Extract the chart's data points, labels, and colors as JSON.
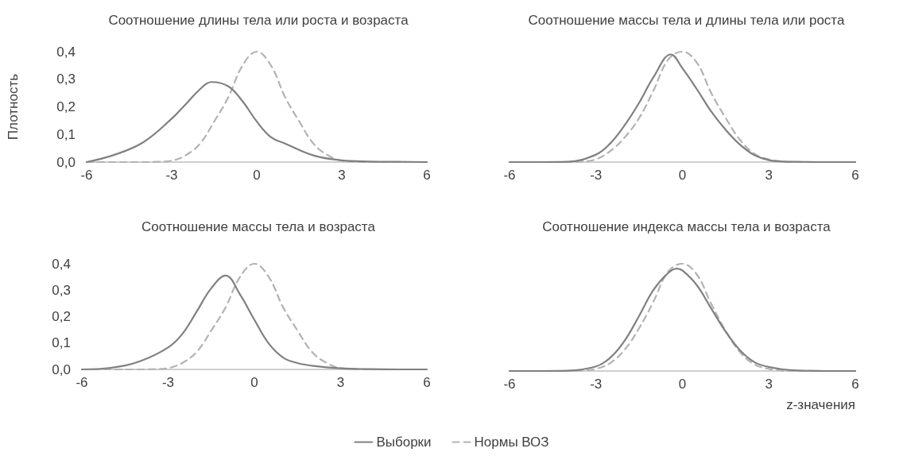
{
  "chart_data": [
    {
      "type": "line",
      "title": "Соотношение длины тела или роста и возраста",
      "ylabel": "Плотность",
      "xlim": [
        -6,
        6
      ],
      "xticks": [
        -6,
        -3,
        0,
        3,
        6
      ],
      "ylim": [
        0,
        0.4
      ],
      "yticks": [
        {
          "value": 0,
          "label": "0,0"
        },
        {
          "value": 0.1,
          "label": "0,1"
        },
        {
          "value": 0.2,
          "label": "0,2"
        },
        {
          "value": 0.3,
          "label": "0,3"
        },
        {
          "value": 0.4,
          "label": "0,4"
        }
      ],
      "grid": false,
      "marker": "none",
      "series": [
        {
          "color": "#808080",
          "line_style": "solid",
          "x": [
            -6,
            -5,
            -4,
            -3,
            -2.5,
            -2,
            -1.6,
            -1,
            -0.5,
            0,
            0.5,
            1,
            2,
            3,
            4,
            5,
            6
          ],
          "values": [
            0,
            0.027,
            0.072,
            0.157,
            0.21,
            0.264,
            0.29,
            0.274,
            0.22,
            0.147,
            0.09,
            0.067,
            0.024,
            0.006,
            0.002,
            0.001,
            0
          ]
        },
        {
          "color": "#b3b3b3",
          "line_style": "dashed",
          "x": [
            -6,
            -5,
            -4,
            -3.5,
            -3,
            -2.5,
            -2,
            -1.5,
            -1,
            -0.5,
            0,
            0.5,
            1,
            1.5,
            2,
            2.5,
            3,
            3.5,
            4,
            5,
            6
          ],
          "values": [
            0,
            0,
            0,
            0.001,
            0.005,
            0.025,
            0.067,
            0.147,
            0.235,
            0.35,
            0.4,
            0.35,
            0.235,
            0.147,
            0.067,
            0.025,
            0.005,
            0.001,
            0,
            0,
            0
          ]
        }
      ]
    },
    {
      "type": "line",
      "title": "Соотношение массы тела и длины тела или роста",
      "xlim": [
        -6,
        6
      ],
      "xticks": [
        -6,
        -3,
        0,
        3,
        6
      ],
      "ylim": [
        0,
        0.4
      ],
      "tick_labels": "x",
      "grid": false,
      "marker": "none",
      "series": [
        {
          "color": "#808080",
          "line_style": "solid",
          "x": [
            -6,
            -5,
            -4,
            -3,
            -2.5,
            -2,
            -1.5,
            -1,
            -0.4,
            0,
            0.5,
            1,
            1.5,
            2,
            2.5,
            3,
            3.5,
            4,
            5,
            6
          ],
          "values": [
            0,
            0,
            0.001,
            0.027,
            0.068,
            0.134,
            0.215,
            0.308,
            0.39,
            0.34,
            0.264,
            0.183,
            0.117,
            0.063,
            0.025,
            0.007,
            0.002,
            0.001,
            0,
            0
          ]
        },
        {
          "color": "#b3b3b3",
          "line_style": "dashed",
          "x": [
            -6,
            -5,
            -4,
            -3.5,
            -3,
            -2.5,
            -2,
            -1.5,
            -1,
            -0.5,
            0,
            0.5,
            1,
            1.5,
            2,
            2.5,
            3,
            3.5,
            4,
            5,
            6
          ],
          "values": [
            0,
            0,
            0,
            0.002,
            0.01,
            0.04,
            0.09,
            0.16,
            0.26,
            0.37,
            0.4,
            0.36,
            0.25,
            0.16,
            0.08,
            0.03,
            0.01,
            0.002,
            0,
            0,
            0
          ]
        }
      ]
    },
    {
      "type": "line",
      "title": "Соотношение массы тела и возраста",
      "xlim": [
        -6,
        6
      ],
      "xticks": [
        -6,
        -3,
        0,
        3,
        6
      ],
      "ylim": [
        0,
        0.4
      ],
      "yticks": [
        {
          "value": 0,
          "label": "0,0"
        },
        {
          "value": 0.1,
          "label": "0,1"
        },
        {
          "value": 0.2,
          "label": "0,2"
        },
        {
          "value": 0.3,
          "label": "0,3"
        },
        {
          "value": 0.4,
          "label": "0,4"
        }
      ],
      "grid": false,
      "marker": "none",
      "series": [
        {
          "color": "#808080",
          "line_style": "solid",
          "x": [
            -6,
            -5,
            -4,
            -3,
            -2.5,
            -2,
            -1.5,
            -1,
            -0.5,
            0,
            0.5,
            1,
            1.5,
            2,
            3,
            4,
            5,
            6
          ],
          "values": [
            0,
            0.006,
            0.03,
            0.083,
            0.135,
            0.22,
            0.307,
            0.355,
            0.284,
            0.188,
            0.098,
            0.045,
            0.024,
            0.014,
            0.004,
            0.001,
            0,
            0
          ]
        },
        {
          "color": "#b3b3b3",
          "line_style": "dashed",
          "x": [
            -6,
            -5,
            -4,
            -3.5,
            -3,
            -2.5,
            -2,
            -1.5,
            -1,
            -0.5,
            0,
            0.5,
            1,
            1.5,
            2,
            2.5,
            3,
            3.5,
            4,
            5,
            6
          ],
          "values": [
            0,
            0,
            0,
            0.001,
            0.005,
            0.025,
            0.067,
            0.147,
            0.235,
            0.35,
            0.4,
            0.35,
            0.235,
            0.147,
            0.067,
            0.025,
            0.005,
            0.001,
            0,
            0,
            0
          ]
        }
      ]
    },
    {
      "type": "line",
      "title": "Соотношение индекса массы тела и возраста",
      "xlabel": "z-значения",
      "xlim": [
        -6,
        6
      ],
      "xticks": [
        -6,
        -3,
        0,
        3,
        6
      ],
      "ylim": [
        0,
        0.4
      ],
      "tick_labels": "x",
      "grid": false,
      "marker": "none",
      "legend": "bottom",
      "series": [
        {
          "name": "Выборки",
          "color": "#808080",
          "line_style": "solid",
          "x": [
            -6,
            -5,
            -4,
            -3,
            -2.5,
            -2,
            -1.5,
            -1,
            -0.5,
            -0.2,
            0,
            0.5,
            1,
            1.5,
            2,
            2.5,
            3,
            3.5,
            4,
            5,
            6
          ],
          "values": [
            0,
            0,
            0.001,
            0.017,
            0.05,
            0.114,
            0.206,
            0.303,
            0.365,
            0.382,
            0.375,
            0.32,
            0.233,
            0.147,
            0.077,
            0.033,
            0.015,
            0.006,
            0.002,
            0,
            0
          ]
        },
        {
          "name": "Нормы ВОЗ",
          "color": "#b3b3b3",
          "line_style": "dashed",
          "x": [
            -6,
            -5,
            -4,
            -3.5,
            -3,
            -2.5,
            -2,
            -1.5,
            -1,
            -0.5,
            0,
            0.5,
            1,
            1.5,
            2,
            2.5,
            3,
            3.5,
            4,
            5,
            6
          ],
          "values": [
            0,
            0,
            0,
            0.002,
            0.008,
            0.03,
            0.08,
            0.16,
            0.26,
            0.37,
            0.4,
            0.36,
            0.25,
            0.15,
            0.07,
            0.025,
            0.008,
            0.002,
            0,
            0,
            0
          ]
        }
      ]
    }
  ]
}
